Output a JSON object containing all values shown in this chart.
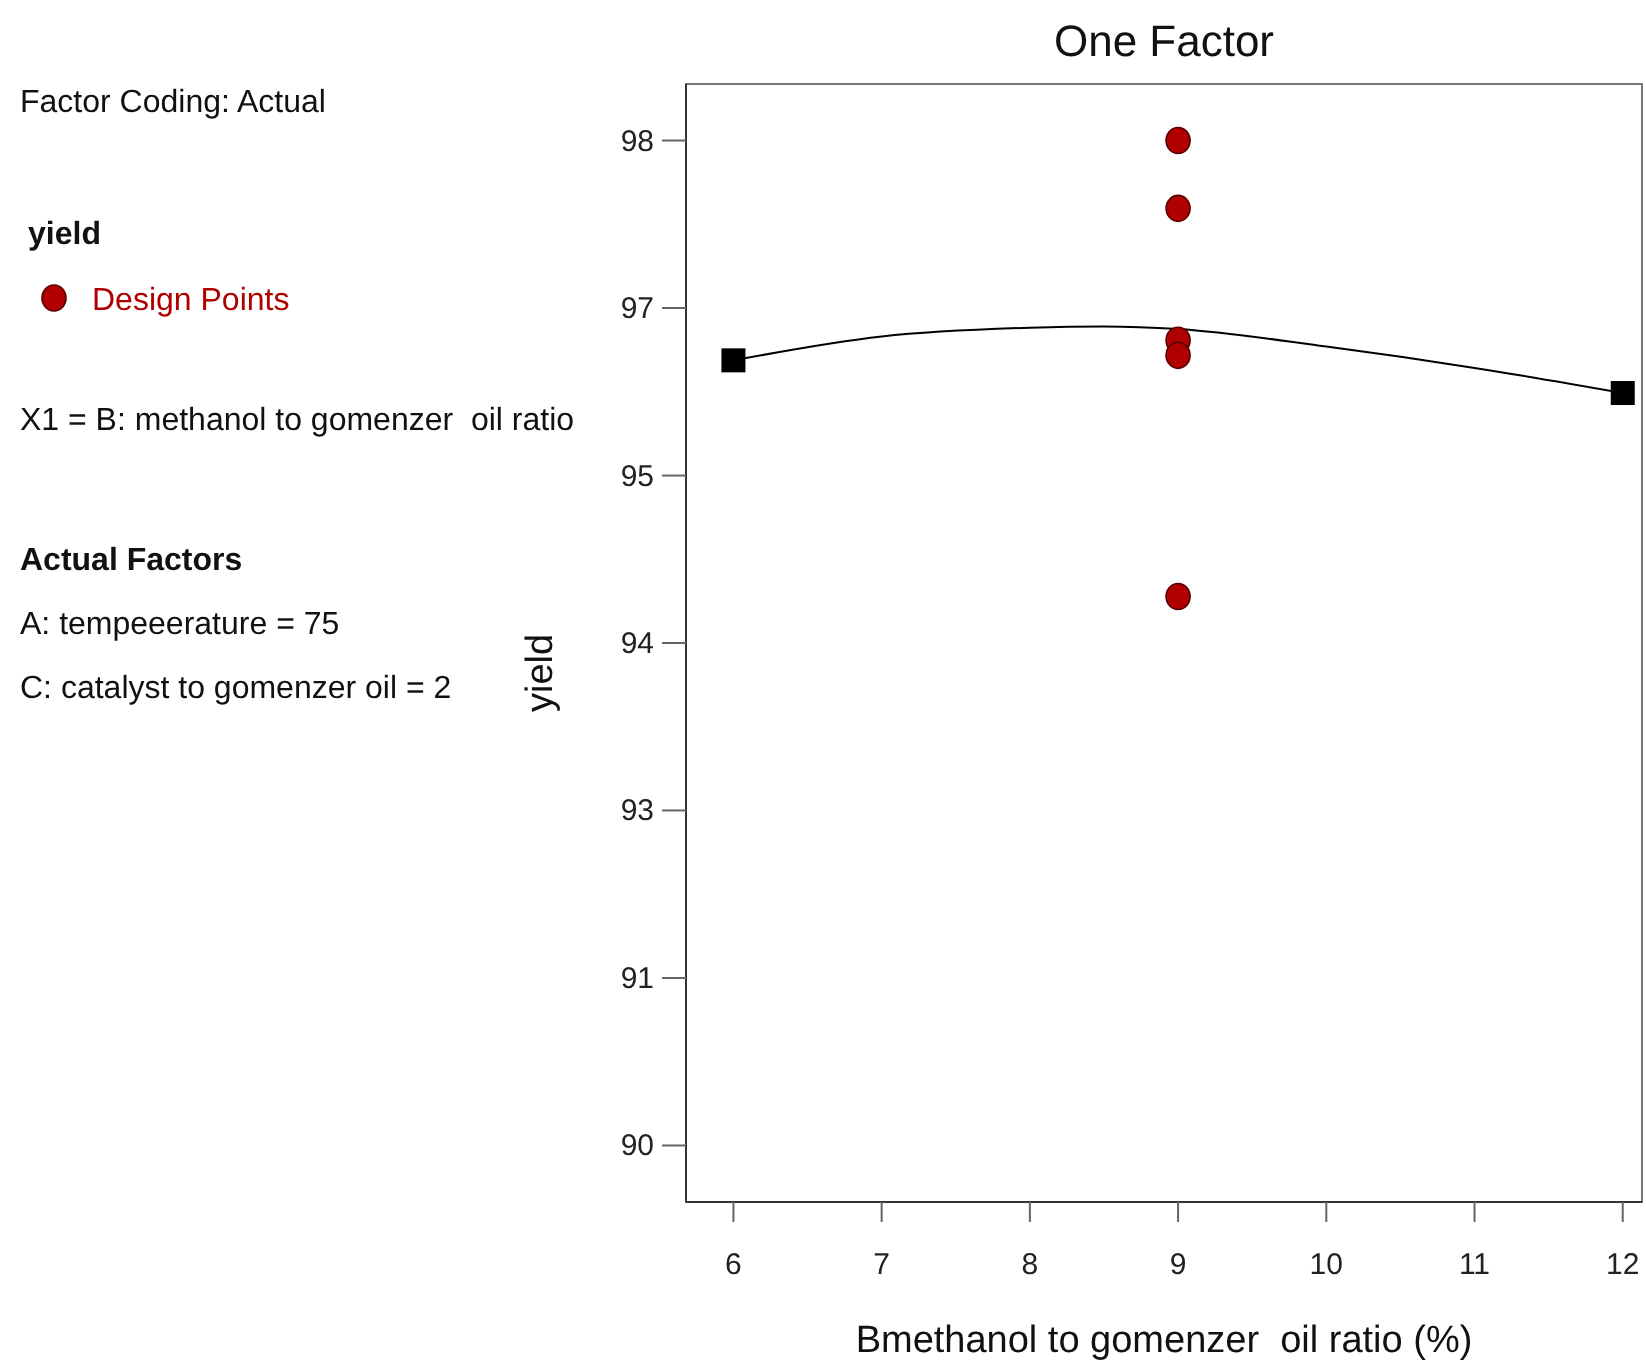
{
  "chart_data": {
    "type": "scatter",
    "title": "One Factor",
    "xlabel": "Bmethanol to gomenzer  oil ratio (%)",
    "ylabel": "yield",
    "legend_title": "yield",
    "legend": "left",
    "annotations": [
      "Factor Coding: Actual",
      "X1 = B: methanol to gomenzer  oil ratio",
      "Actual Factors",
      "A: tempeeerature = 75",
      "C: catalyst to gomenzer oil = 2"
    ],
    "xlim": [
      5.68,
      12.13
    ],
    "xticks": [
      6,
      7,
      8,
      9,
      10,
      11,
      12
    ],
    "ylim": [
      89.55,
      98.45
    ],
    "yticks": [
      90,
      {
        "value": 91.333,
        "label": "91"
      },
      {
        "value": 92.667,
        "label": "93"
      },
      94,
      {
        "value": 95.333,
        "label": "95"
      },
      {
        "value": 96.667,
        "label": "97"
      },
      98
    ],
    "grid": false,
    "series": [
      {
        "type": "line",
        "color": "#000000",
        "marker": "none",
        "x": [
          6,
          7,
          8,
          8.5,
          9,
          10,
          11,
          12
        ],
        "values": [
          96.25,
          96.44,
          96.51,
          96.52,
          96.5,
          96.36,
          96.19,
          95.99
        ]
      },
      {
        "color": "#000000",
        "marker": "square",
        "x": [
          6,
          12
        ],
        "values": [
          96.25,
          95.99
        ]
      },
      {
        "name": "Design Points",
        "color": "#b00000",
        "marker": "circle",
        "x": [
          9,
          9,
          9,
          9,
          9
        ],
        "values": [
          98,
          97.46,
          96.41,
          96.29,
          94.37
        ]
      }
    ]
  }
}
